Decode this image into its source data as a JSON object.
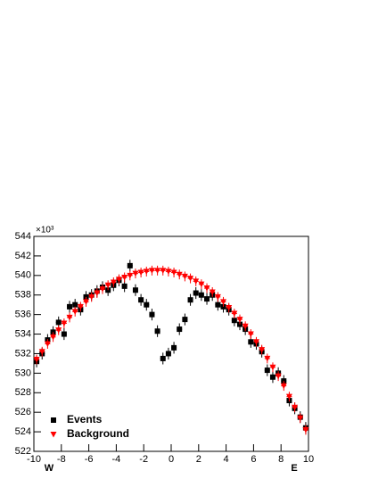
{
  "chart_data": {
    "type": "scatter",
    "y_multiplier": "×10³",
    "x_left_label": "W",
    "x_right_label": "E",
    "xlim": [
      -10,
      10
    ],
    "xticks": [
      -10,
      -8,
      -6,
      -4,
      -2,
      0,
      2,
      4,
      6,
      8,
      10
    ],
    "ylim": [
      522,
      544
    ],
    "yticks": [
      522,
      524,
      526,
      528,
      530,
      532,
      534,
      536,
      538,
      540,
      542,
      544
    ],
    "legend": "bottom-left",
    "x": [
      -9.8,
      -9.4,
      -9.0,
      -8.6,
      -8.2,
      -7.8,
      -7.4,
      -7.0,
      -6.6,
      -6.2,
      -5.8,
      -5.4,
      -5.0,
      -4.6,
      -4.2,
      -3.8,
      -3.4,
      -3.0,
      -2.6,
      -2.2,
      -1.8,
      -1.4,
      -1.0,
      -0.6,
      -0.2,
      0.2,
      0.6,
      1.0,
      1.4,
      1.8,
      2.2,
      2.6,
      3.0,
      3.4,
      3.8,
      4.2,
      4.6,
      5.0,
      5.4,
      5.8,
      6.2,
      6.6,
      7.0,
      7.4,
      7.8,
      8.2,
      8.6,
      9.0,
      9.4,
      9.8
    ],
    "series": [
      {
        "name": "Events",
        "color": "#000000",
        "marker": "square",
        "error": 0.6,
        "values": [
          531.2,
          532.0,
          533.4,
          534.2,
          535.2,
          534.0,
          536.8,
          537.0,
          536.5,
          537.8,
          538.0,
          538.4,
          538.8,
          538.5,
          539.0,
          539.5,
          538.9,
          541.0,
          538.5,
          537.5,
          537.0,
          536.0,
          534.3,
          531.5,
          532.0,
          532.6,
          534.5,
          535.5,
          537.5,
          538.2,
          538.0,
          537.6,
          538.0,
          537.0,
          536.8,
          536.5,
          535.4,
          535.0,
          534.5,
          533.2,
          533.0,
          532.2,
          530.3,
          529.6,
          530.0,
          529.2,
          527.2,
          526.4,
          525.5,
          524.4
        ]
      },
      {
        "name": "Background",
        "color": "#ff0000",
        "marker": "triangle-down",
        "error": 0.5,
        "values": [
          531.4,
          532.2,
          533.0,
          533.7,
          534.4,
          535.1,
          535.7,
          536.3,
          536.8,
          537.3,
          537.8,
          538.2,
          538.6,
          539.0,
          539.3,
          539.6,
          539.8,
          540.0,
          540.2,
          540.3,
          540.4,
          540.5,
          540.5,
          540.5,
          540.4,
          540.3,
          540.1,
          539.9,
          539.7,
          539.4,
          539.1,
          538.7,
          538.3,
          537.8,
          537.3,
          536.7,
          536.1,
          535.5,
          534.8,
          534.0,
          533.2,
          532.4,
          531.5,
          530.6,
          529.7,
          528.7,
          527.6,
          526.5,
          525.4,
          524.2
        ]
      }
    ]
  }
}
